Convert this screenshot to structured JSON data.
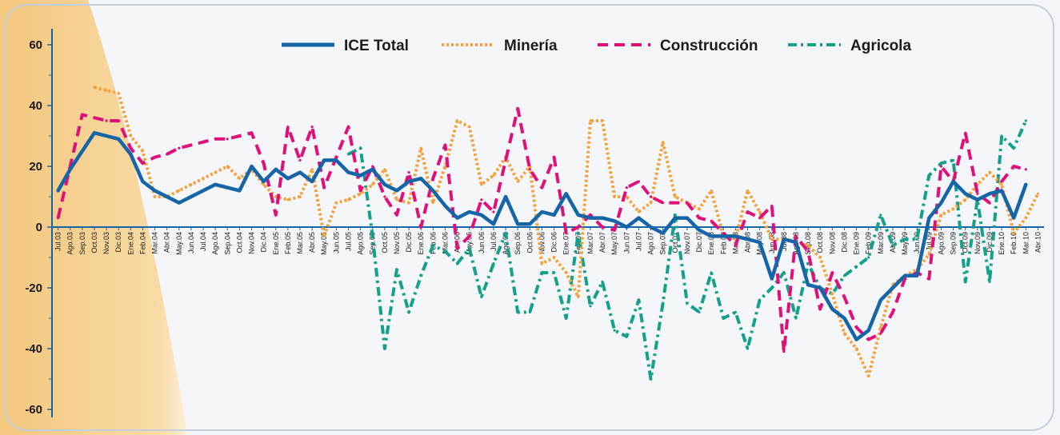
{
  "chart_data": {
    "type": "line",
    "title": "",
    "xlabel": "",
    "ylabel": "",
    "ylim": [
      -60,
      60
    ],
    "yticks": [
      60,
      40,
      20,
      0,
      -20,
      -40,
      -60
    ],
    "grid": false,
    "legend_position": "top",
    "categories": [
      "Jul.03",
      "Ago.03",
      "Sep.03",
      "Oct.03",
      "Nov.03",
      "Dic.03",
      "Ene.04",
      "Feb.04",
      "Mar.04",
      "Abr.04",
      "May.04",
      "Jun.04",
      "Jul.04",
      "Ago.04",
      "Sep.04",
      "Oct.04",
      "Nov.04",
      "Dic.04",
      "Ene.05",
      "Feb.05",
      "Mar.05",
      "Abr.05",
      "May.05",
      "Jun.05",
      "Jul.05",
      "Ago.05",
      "Sep.05",
      "Oct.05",
      "Nov.05",
      "Dic.05",
      "Ene.06",
      "Feb.06",
      "Mar.06",
      "Abr.06",
      "May.06",
      "Jun.06",
      "Jul.06",
      "Ago.06",
      "Sep.06",
      "Oct.06",
      "Nov.06",
      "Dic.06",
      "Ene.07",
      "Feb.07",
      "Mar.07",
      "Abr.07",
      "May.07",
      "Jun.07",
      "Jul.07",
      "Ago.07",
      "Sep.07",
      "Oct.07",
      "Nov.07",
      "Dic.07",
      "Ene.08",
      "Feb.08",
      "Mar.08",
      "Abr.08",
      "May.08",
      "Jun.08",
      "Jul.08",
      "Ago.08",
      "Sep.08",
      "Oct.08",
      "Nov.08",
      "Dic.08",
      "Ene.09",
      "Feb.09",
      "Mar.09",
      "Abr.09",
      "May.09",
      "Jun.09",
      "Jul.09",
      "Ago.09",
      "Sep.09",
      "Oct.09",
      "Nov.09",
      "Dic.09",
      "Ene.10",
      "Feb.10",
      "Mar.10",
      "Abr.10"
    ],
    "series": [
      {
        "name": "ICE Total",
        "color": "#1565a8",
        "style": "solid",
        "values": [
          12,
          19,
          25,
          31,
          30,
          29,
          24,
          15,
          12,
          10,
          8,
          10,
          12,
          14,
          13,
          12,
          20,
          15,
          19,
          16,
          18,
          15,
          22,
          22,
          18,
          17,
          19,
          14,
          12,
          15,
          16,
          12,
          7,
          3,
          5,
          4,
          1,
          10,
          1,
          1,
          5,
          4,
          11,
          4,
          3,
          3,
          2,
          0,
          3,
          0,
          -2,
          3,
          3,
          -1,
          -3,
          -3,
          -3,
          -4,
          -5,
          -17,
          -4,
          -5,
          -19,
          -20,
          -27,
          -30,
          -37,
          -34,
          -24,
          -20,
          -16,
          -16,
          3,
          8,
          15,
          11,
          9,
          11,
          12,
          3,
          14,
          null
        ]
      },
      {
        "name": "Minería",
        "color": "#f3a33c",
        "style": "dotted",
        "values": [
          null,
          null,
          null,
          46,
          45,
          44,
          30,
          25,
          10,
          10,
          12,
          14,
          16,
          18,
          20,
          16,
          19,
          14,
          10,
          9,
          10,
          19,
          -3,
          8,
          9,
          11,
          14,
          19,
          9,
          8,
          26,
          8,
          20,
          35,
          33,
          14,
          17,
          23,
          15,
          20,
          -12,
          -10,
          -15,
          -23,
          35,
          35,
          10,
          10,
          5,
          8,
          28,
          10,
          8,
          6,
          12,
          -3,
          -4,
          12,
          5,
          -4,
          -4,
          -5,
          -6,
          -10,
          -22,
          -35,
          -40,
          -49,
          -33,
          -19,
          -16,
          -14,
          -9,
          4,
          6,
          9,
          14,
          18,
          14,
          -2,
          3,
          11
        ]
      },
      {
        "name": "Construcción",
        "color": "#e0107a",
        "style": "dashed",
        "values": [
          3,
          20,
          37,
          36,
          35,
          35,
          26,
          21,
          23,
          24,
          26,
          27,
          28,
          29,
          29,
          30,
          31,
          21,
          4,
          33,
          22,
          33,
          13,
          23,
          33,
          12,
          20,
          10,
          4,
          18,
          0,
          16,
          27,
          -7,
          -3,
          9,
          5,
          22,
          39,
          19,
          13,
          23,
          -2,
          0,
          4,
          0,
          -1,
          13,
          15,
          10,
          8,
          8,
          8,
          3,
          2,
          -2,
          -6,
          5,
          3,
          7,
          -41,
          -3,
          -8,
          -27,
          -15,
          -23,
          -33,
          -37,
          -35,
          -28,
          -17,
          -15,
          -17,
          20,
          15,
          31,
          11,
          8,
          15,
          20,
          19,
          null
        ]
      },
      {
        "name": "Agricola",
        "color": "#14a089",
        "style": "dashdot",
        "values": [
          null,
          null,
          null,
          null,
          null,
          null,
          null,
          null,
          null,
          null,
          null,
          null,
          null,
          null,
          null,
          null,
          null,
          null,
          null,
          null,
          null,
          null,
          null,
          null,
          24,
          26,
          -3,
          -40,
          -14,
          -28,
          -16,
          -6,
          -8,
          -12,
          -7,
          -23,
          -12,
          -2,
          -28,
          -28,
          -15,
          -15,
          -30,
          -2,
          -26,
          -18,
          -34,
          -36,
          -24,
          -50,
          -25,
          4,
          -25,
          -28,
          -15,
          -30,
          -28,
          -40,
          -24,
          -20,
          -15,
          -30,
          -12,
          -20,
          -22,
          -16,
          -13,
          -10,
          4,
          -6,
          -4,
          -4,
          17,
          21,
          22,
          -18,
          9,
          -18,
          30,
          26,
          35,
          null
        ]
      }
    ]
  }
}
